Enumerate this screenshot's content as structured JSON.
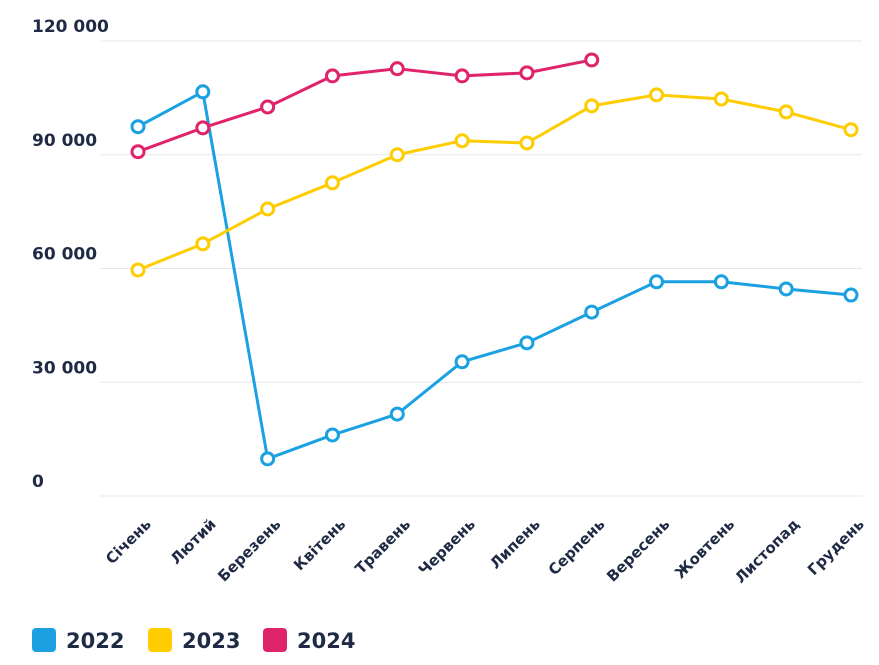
{
  "chart_data": {
    "type": "line",
    "categories": [
      "Січень",
      "Лютий",
      "Березень",
      "Квітень",
      "Травень",
      "Червень",
      "Липень",
      "Серпень",
      "Вересень",
      "Жовтень",
      "Листопад",
      "Грудень"
    ],
    "series": [
      {
        "name": "2022",
        "color": "#1ba1e2",
        "values": [
          97400,
          106600,
          9800,
          16100,
          21600,
          35400,
          40400,
          48500,
          56500,
          56500,
          54600,
          53000
        ]
      },
      {
        "name": "2023",
        "color": "#ffcc00",
        "values": [
          59600,
          66500,
          75700,
          82600,
          90000,
          93700,
          93100,
          102900,
          105800,
          104700,
          101300,
          96600
        ]
      },
      {
        "name": "2024",
        "color": "#e0246b",
        "values": [
          90800,
          97100,
          102600,
          110800,
          112700,
          110800,
          111600,
          115000,
          null,
          null,
          null,
          null
        ]
      }
    ],
    "ylim": [
      0,
      120000
    ],
    "yticks": [
      {
        "value": 0,
        "label": "0"
      },
      {
        "value": 30000,
        "label": "30 000"
      },
      {
        "value": 60000,
        "label": "60 000"
      },
      {
        "value": 90000,
        "label": "90 000"
      },
      {
        "value": 120000,
        "label": "120 000"
      }
    ],
    "grid": true,
    "legend": "bottom-left"
  }
}
